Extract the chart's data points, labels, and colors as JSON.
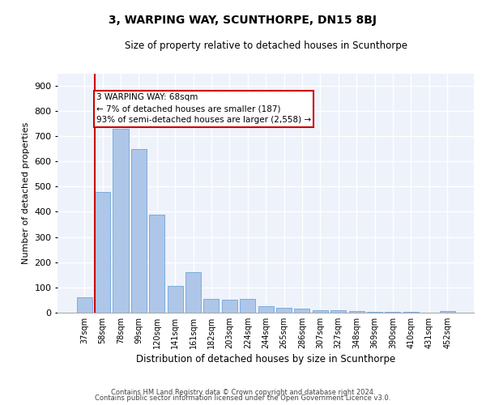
{
  "title": "3, WARPING WAY, SCUNTHORPE, DN15 8BJ",
  "subtitle": "Size of property relative to detached houses in Scunthorpe",
  "xlabel": "Distribution of detached houses by size in Scunthorpe",
  "ylabel": "Number of detached properties",
  "categories": [
    "37sqm",
    "58sqm",
    "78sqm",
    "99sqm",
    "120sqm",
    "141sqm",
    "161sqm",
    "182sqm",
    "203sqm",
    "224sqm",
    "244sqm",
    "265sqm",
    "286sqm",
    "307sqm",
    "327sqm",
    "348sqm",
    "369sqm",
    "390sqm",
    "410sqm",
    "431sqm",
    "452sqm"
  ],
  "values": [
    60,
    480,
    730,
    650,
    390,
    105,
    160,
    55,
    50,
    55,
    25,
    18,
    15,
    10,
    8,
    5,
    3,
    2,
    2,
    1,
    5
  ],
  "bar_color": "#aec6e8",
  "bar_edge_color": "#5b9bd5",
  "property_line_bar_index": 1,
  "annotation_text": "3 WARPING WAY: 68sqm\n← 7% of detached houses are smaller (187)\n93% of semi-detached houses are larger (2,558) →",
  "annotation_box_color": "white",
  "annotation_box_edge_color": "#cc0000",
  "property_line_color": "#cc0000",
  "ylim": [
    0,
    950
  ],
  "yticks": [
    0,
    100,
    200,
    300,
    400,
    500,
    600,
    700,
    800,
    900
  ],
  "background_color": "#eef2fb",
  "grid_color": "white",
  "footnote1": "Contains HM Land Registry data © Crown copyright and database right 2024.",
  "footnote2": "Contains public sector information licensed under the Open Government Licence v3.0."
}
